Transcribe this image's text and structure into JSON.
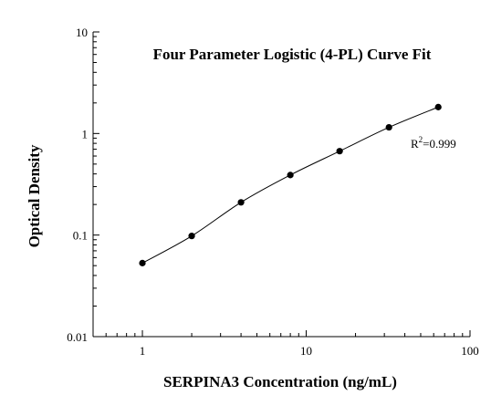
{
  "chart_data": {
    "type": "scatter",
    "title": "Four Parameter Logistic (4-PL) Curve Fit",
    "xlabel": "SERPINA3 Concentration (ng/mL)",
    "ylabel": "Optical Density",
    "x_scale": "log",
    "y_scale": "log",
    "xlim": [
      0.5,
      100
    ],
    "ylim": [
      0.01,
      10
    ],
    "x_ticks": [
      {
        "value": 1,
        "label": "1"
      },
      {
        "value": 10,
        "label": "10"
      },
      {
        "value": 100,
        "label": "100"
      }
    ],
    "y_ticks": [
      {
        "value": 0.01,
        "label": "0.01"
      },
      {
        "value": 0.1,
        "label": "0.1"
      },
      {
        "value": 1,
        "label": "1"
      },
      {
        "value": 10,
        "label": "10"
      }
    ],
    "grid": false,
    "legend": "none",
    "annotation": {
      "base": "R",
      "sup": "2",
      "rest": "=0.999"
    },
    "series": [
      {
        "x": [
          1,
          2,
          4,
          8,
          16,
          32,
          64
        ],
        "y": [
          0.053,
          0.098,
          0.21,
          0.39,
          0.67,
          1.15,
          1.82
        ]
      }
    ],
    "fit_curve": "4PL",
    "colors": {
      "marker": "#000000",
      "line": "#000000",
      "axis": "#000000"
    }
  }
}
